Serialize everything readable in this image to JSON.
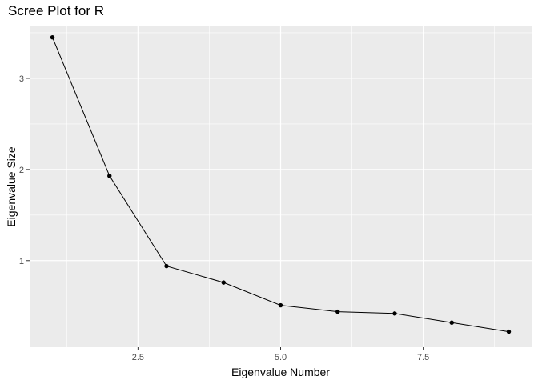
{
  "chart_data": {
    "type": "line",
    "title": "Scree Plot for R",
    "xlabel": "Eigenvalue Number",
    "ylabel": "Eigenvalue Size",
    "x": [
      1,
      2,
      3,
      4,
      5,
      6,
      7,
      8,
      9
    ],
    "series": [
      {
        "values": [
          3.45,
          1.93,
          0.94,
          0.76,
          0.51,
          0.44,
          0.42,
          0.32,
          0.22
        ]
      }
    ],
    "xlim": [
      0.6,
      9.4
    ],
    "ylim": [
      0.05,
      3.57
    ],
    "xticks": [
      2.5,
      5.0,
      7.5
    ],
    "xtick_labels": [
      "2.5",
      "5.0",
      "7.5"
    ],
    "yticks": [
      1,
      2,
      3
    ],
    "ytick_labels": [
      "1",
      "2",
      "3"
    ],
    "grid": true,
    "colors": {
      "panel": "#ebebeb",
      "grid": "#ffffff",
      "line": "#000000",
      "point": "#000000"
    }
  }
}
